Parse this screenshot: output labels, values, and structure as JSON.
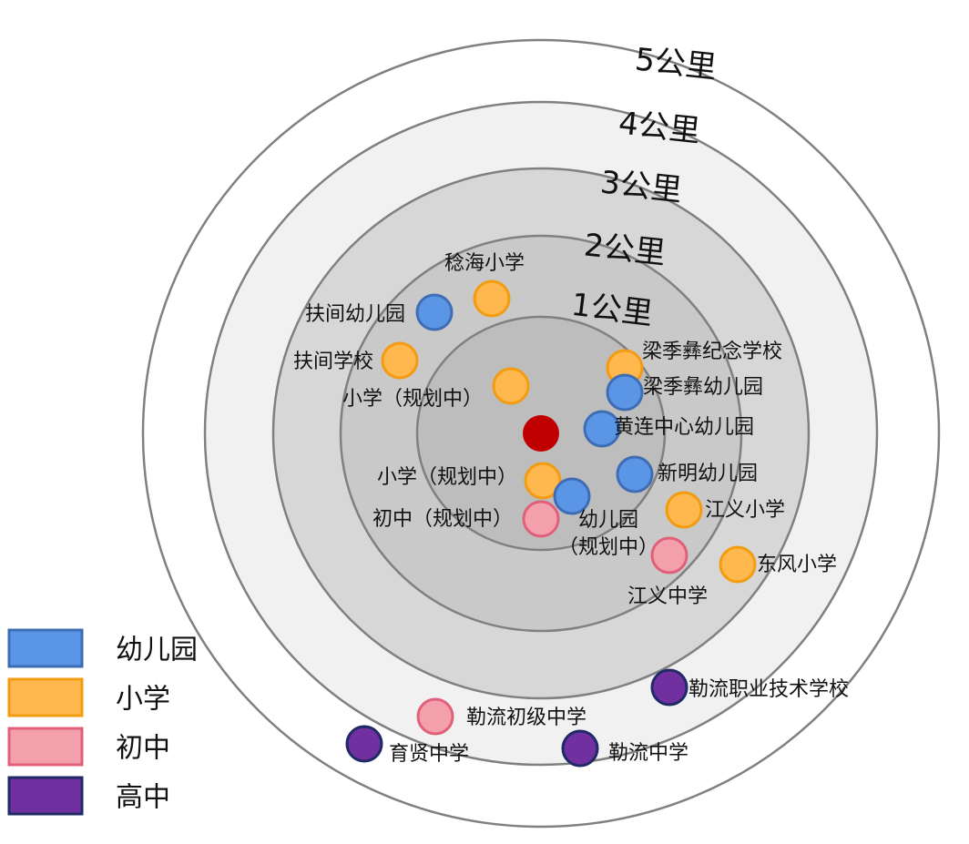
{
  "colors": {
    "ring_1": "#bdbdbd",
    "ring_2": "#c9c9c9",
    "ring_3": "#d7d7d7",
    "ring_4": "#f1f1f1",
    "ring_5": "#ffffff",
    "ring_stroke": "#808080",
    "center": "#c00000",
    "kindergarten_fill": "#5b96e6",
    "kindergarten_stroke": "#3f6db5",
    "primary_fill": "#ffb84d",
    "primary_stroke": "#f39c12",
    "junior_fill": "#f4a0ac",
    "junior_stroke": "#e0607a",
    "senior_fill": "#7030a0",
    "senior_stroke": "#1f2a66"
  },
  "rings": [
    {
      "label": "1公里"
    },
    {
      "label": "2公里"
    },
    {
      "label": "3公里"
    },
    {
      "label": "4公里"
    },
    {
      "label": "5公里"
    }
  ],
  "legend": [
    {
      "type": "kindergarten",
      "label": "幼儿园"
    },
    {
      "type": "primary",
      "label": "小学"
    },
    {
      "type": "junior",
      "label": "初中"
    },
    {
      "type": "senior",
      "label": "高中"
    }
  ],
  "schools": [
    {
      "type": "primary",
      "label": "稔海小学"
    },
    {
      "type": "kindergarten",
      "label": "扶间幼儿园"
    },
    {
      "type": "primary",
      "label": "扶间学校"
    },
    {
      "type": "primary",
      "label": "小学（规划中）"
    },
    {
      "type": "primary",
      "label": "梁季彝纪念学校"
    },
    {
      "type": "kindergarten",
      "label": "梁季彝幼儿园"
    },
    {
      "type": "kindergarten",
      "label": "黄连中心幼儿园"
    },
    {
      "type": "kindergarten",
      "label": "新明幼儿园"
    },
    {
      "type": "primary",
      "label": "小学（规划中）"
    },
    {
      "type": "kindergarten",
      "label": "幼儿园\n（规划中）"
    },
    {
      "type": "junior",
      "label": "初中（规划中）"
    },
    {
      "type": "primary",
      "label": "江义小学"
    },
    {
      "type": "junior",
      "label": "江义中学"
    },
    {
      "type": "primary",
      "label": "东风小学"
    },
    {
      "type": "senior",
      "label": "勒流职业技术学校"
    },
    {
      "type": "junior",
      "label": "勒流初级中学"
    },
    {
      "type": "senior",
      "label": "育贤中学"
    },
    {
      "type": "senior",
      "label": "勒流中学"
    }
  ]
}
